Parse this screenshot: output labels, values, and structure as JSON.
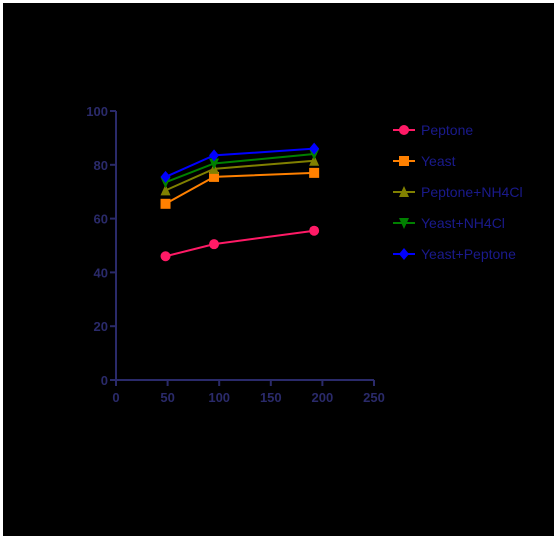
{
  "chart_data": {
    "type": "line",
    "title": "",
    "xlabel": "",
    "ylabel": "",
    "xlim": [
      0,
      250
    ],
    "ylim": [
      0,
      100
    ],
    "x_ticks": [
      0,
      50,
      100,
      150,
      200,
      250
    ],
    "y_ticks": [
      0,
      20,
      40,
      60,
      80,
      100
    ],
    "grid": false,
    "legend_position": "right",
    "x": [
      48,
      95,
      192
    ],
    "series": [
      {
        "name": "Peptone",
        "values": [
          46,
          50.5,
          55.5
        ],
        "color": "#ff1a66",
        "marker": "circle"
      },
      {
        "name": "Yeast",
        "values": [
          65.5,
          75.5,
          77
        ],
        "color": "#ff8000",
        "marker": "square"
      },
      {
        "name": "Peptone+NH4Cl",
        "values": [
          70.5,
          78.5,
          81.5
        ],
        "color": "#808000",
        "marker": "triangle-up"
      },
      {
        "name": "Yeast+NH4Cl",
        "values": [
          73.5,
          80.5,
          84
        ],
        "color": "#008000",
        "marker": "triangle-down"
      },
      {
        "name": "Yeast+Peptone",
        "values": [
          75.5,
          83.5,
          86
        ],
        "color": "#0000ff",
        "marker": "diamond"
      }
    ],
    "axis_color": "#2a2a6a"
  }
}
